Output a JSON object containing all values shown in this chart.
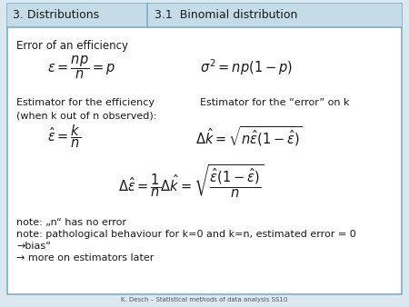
{
  "header_left": "3. Distributions",
  "header_right": "3.1  Binomial distribution",
  "header_bg": "#c5dce8",
  "header_left_bg": "#c5dce8",
  "border_color": "#7aafc8",
  "title": "Error of an efficiency",
  "formula1_left": "$\\varepsilon = \\dfrac{np}{n} = p$",
  "formula1_right": "$\\sigma^{2} = np(1-p)$",
  "label_efficiency": "Estimator for the efficiency\n(when k out of n observed):",
  "label_error_k": "Estimator for the “error” on k",
  "formula2_left": "$\\hat{\\varepsilon} = \\dfrac{k}{n}$",
  "formula2_right": "$\\Delta\\hat{k} = \\sqrt{n\\hat{\\varepsilon}(1-\\hat{\\varepsilon})}$",
  "formula3": "$\\Delta\\hat{\\varepsilon} = \\dfrac{1}{n}\\Delta\\hat{k} = \\sqrt{\\dfrac{\\hat{\\varepsilon}(1-\\hat{\\varepsilon})}{n}}$",
  "note1": "note: „n“ has no error",
  "note2": "note: pathological behaviour for k=0 and k=n, estimated error = 0",
  "note3": "→bias“",
  "note4": "→ more on estimators later",
  "footer": "K. Desch – Statistical methods of data analysis SS10",
  "text_color": "#1a1a1a",
  "header_text_color": "#1a1a1a",
  "note_color": "#1a1a1a"
}
